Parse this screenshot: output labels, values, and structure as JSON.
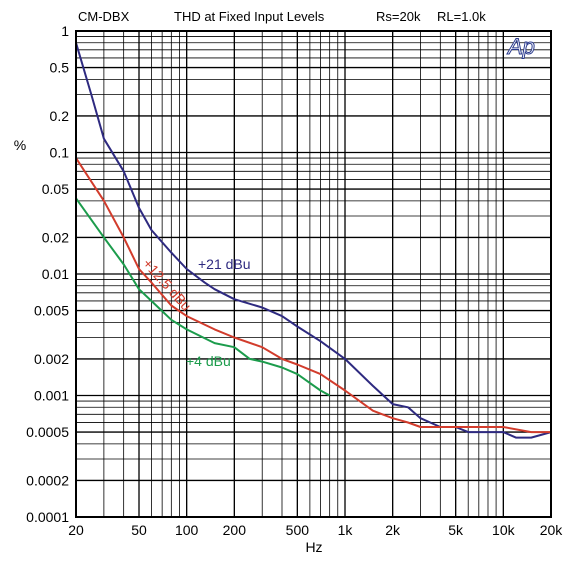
{
  "chart_data": {
    "type": "line",
    "header": {
      "model": "CM-DBX",
      "title": "THD at Fixed Input Levels",
      "rs": "Rs=20k",
      "rl": "RL=1.0k"
    },
    "logo": "Ap",
    "xlabel": "Hz",
    "ylabel": "%",
    "x_scale": "log",
    "y_scale": "log",
    "xlim": [
      20,
      20000
    ],
    "ylim": [
      0.0001,
      1
    ],
    "grid": true,
    "x_ticks": [
      20,
      50,
      100,
      200,
      500,
      1000,
      2000,
      5000,
      10000,
      20000
    ],
    "x_tick_labels": [
      "20",
      "50",
      "100",
      "200",
      "500",
      "1k",
      "2k",
      "5k",
      "10k",
      "20k"
    ],
    "y_ticks": [
      1,
      0.5,
      0.2,
      0.1,
      0.05,
      0.02,
      0.01,
      0.005,
      0.002,
      0.001,
      0.0005,
      0.0002,
      0.0001
    ],
    "y_tick_labels": [
      "1",
      "0.5",
      "0.2",
      "0.1",
      "0.05",
      "0.02",
      "0.01",
      "0.005",
      "0.002",
      "0.001",
      "0.0005",
      "0.0002",
      "0.0001"
    ],
    "series": [
      {
        "name": "+21 dBu",
        "color": "#2e2a80",
        "points": [
          [
            20,
            0.8
          ],
          [
            25,
            0.3
          ],
          [
            30,
            0.13
          ],
          [
            40,
            0.07
          ],
          [
            50,
            0.035
          ],
          [
            60,
            0.023
          ],
          [
            80,
            0.015
          ],
          [
            100,
            0.011
          ],
          [
            130,
            0.0085
          ],
          [
            150,
            0.0075
          ],
          [
            200,
            0.0062
          ],
          [
            300,
            0.0053
          ],
          [
            400,
            0.0045
          ],
          [
            500,
            0.0037
          ],
          [
            700,
            0.0028
          ],
          [
            1000,
            0.002
          ],
          [
            1500,
            0.0012
          ],
          [
            2000,
            0.00085
          ],
          [
            2500,
            0.0008
          ],
          [
            3000,
            0.00065
          ],
          [
            4000,
            0.00055
          ],
          [
            5000,
            0.00055
          ],
          [
            6000,
            0.0005
          ],
          [
            8000,
            0.0005
          ],
          [
            10000,
            0.0005
          ],
          [
            12000,
            0.00045
          ],
          [
            15000,
            0.00045
          ],
          [
            20000,
            0.0005
          ]
        ]
      },
      {
        "name": "+12.5 dBu",
        "color": "#d23c2c",
        "points": [
          [
            20,
            0.09
          ],
          [
            30,
            0.04
          ],
          [
            40,
            0.02
          ],
          [
            50,
            0.011
          ],
          [
            60,
            0.0085
          ],
          [
            80,
            0.0055
          ],
          [
            100,
            0.0045
          ],
          [
            150,
            0.0035
          ],
          [
            200,
            0.003
          ],
          [
            300,
            0.0025
          ],
          [
            400,
            0.002
          ],
          [
            500,
            0.0018
          ],
          [
            700,
            0.0015
          ],
          [
            1000,
            0.0011
          ],
          [
            1500,
            0.00075
          ],
          [
            2000,
            0.00065
          ],
          [
            2500,
            0.0006
          ],
          [
            3000,
            0.00055
          ],
          [
            5000,
            0.00055
          ],
          [
            8000,
            0.00055
          ],
          [
            10000,
            0.00055
          ],
          [
            15000,
            0.0005
          ],
          [
            20000,
            0.0005
          ]
        ]
      },
      {
        "name": "+4 dBu",
        "color": "#1c9c4c",
        "points": [
          [
            20,
            0.042
          ],
          [
            30,
            0.02
          ],
          [
            40,
            0.012
          ],
          [
            50,
            0.0075
          ],
          [
            60,
            0.006
          ],
          [
            80,
            0.0042
          ],
          [
            100,
            0.0035
          ],
          [
            150,
            0.0027
          ],
          [
            200,
            0.0025
          ],
          [
            250,
            0.002
          ],
          [
            300,
            0.0019
          ],
          [
            400,
            0.0017
          ],
          [
            500,
            0.0015
          ],
          [
            700,
            0.0011
          ],
          [
            800,
            0.001
          ]
        ]
      }
    ]
  }
}
